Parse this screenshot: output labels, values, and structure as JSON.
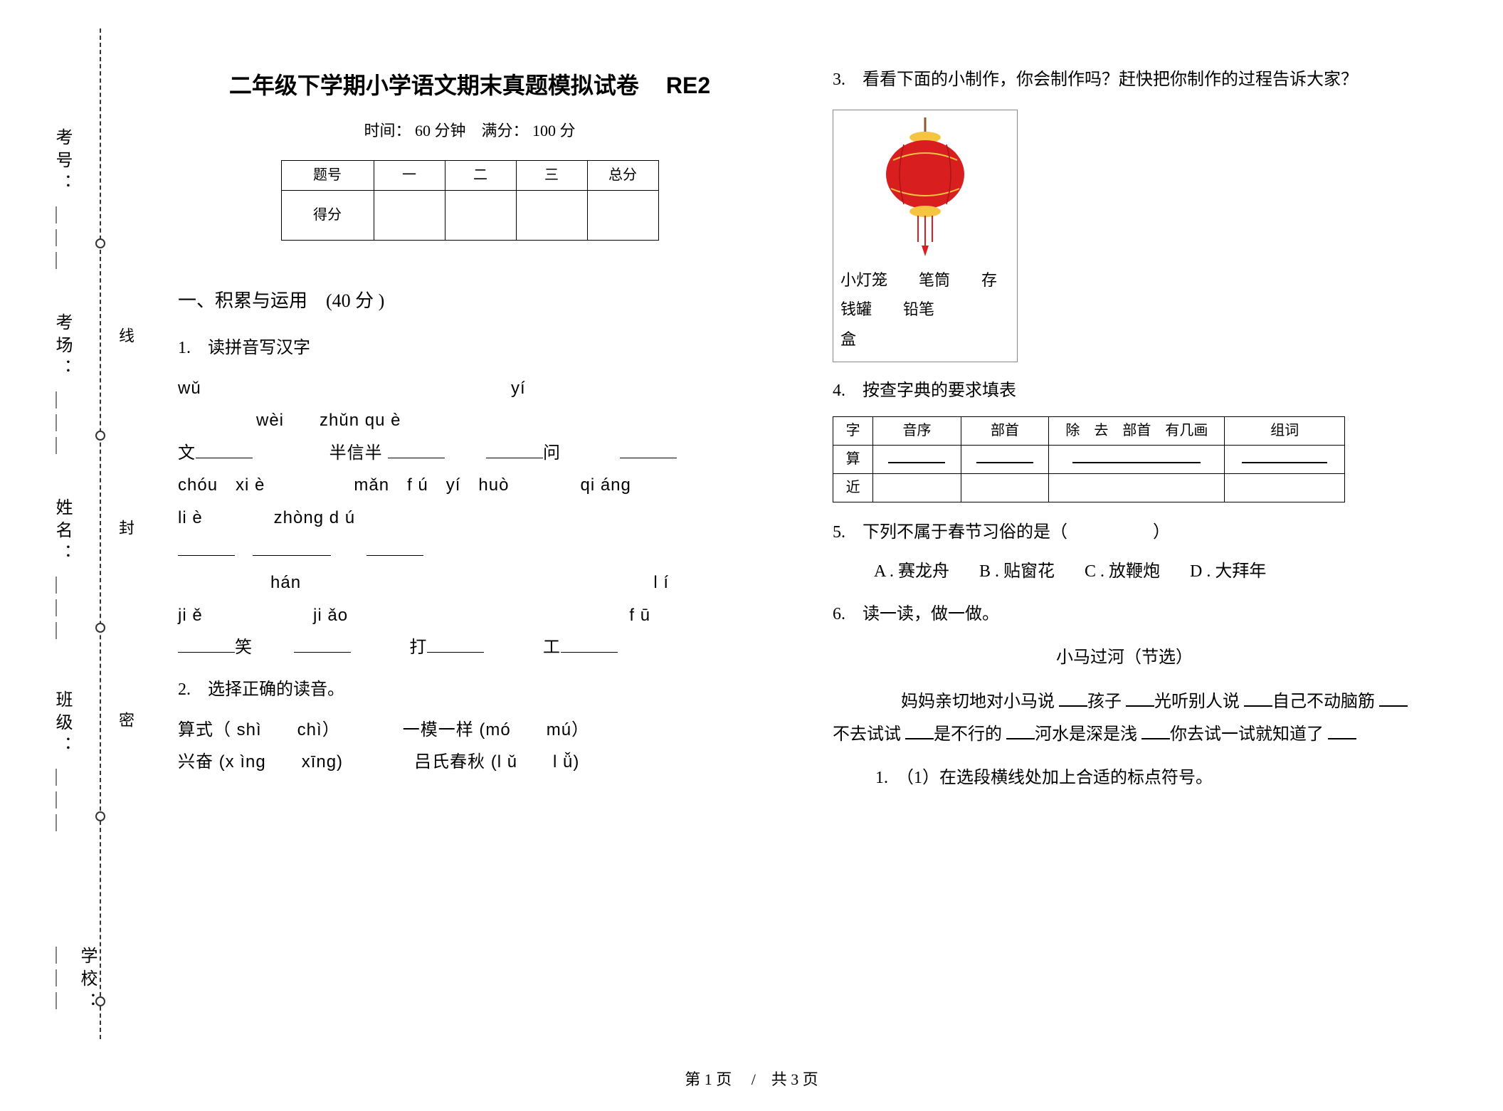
{
  "binding": {
    "labels": [
      "考号：",
      "考场：",
      "姓名：",
      "班级：",
      "学校："
    ],
    "inner": [
      "线",
      "封",
      "密"
    ],
    "dot_tops": [
      295,
      565,
      835,
      1100,
      1360
    ]
  },
  "header": {
    "title": "二年级下学期小学语文期末真题模拟试卷",
    "code": "RE2",
    "subtitle": "时间： 60 分钟　满分： 100 分"
  },
  "score_table": {
    "headers": [
      "题号",
      "一",
      "二",
      "三",
      "总分"
    ],
    "row_label": "得分"
  },
  "section1": {
    "heading": "一、积累与运用　(40 分 )",
    "q1": {
      "num": "1.　读拼音写汉字",
      "line1a": "wǔ",
      "line1b": "yí",
      "line2": "wèi　　zhǔn qu è",
      "line3_pre": "文",
      "line3_mid": "半信半",
      "line3_end": "问",
      "line4": "chóu　xi è　　　　　mǎn　f ú　yí　huò　　　　qi áng",
      "line5": "li è　　　　zhòng d ú",
      "line6a": "hán",
      "line6b": "l í",
      "line7a": "ji ě",
      "line7b": "ji ǎo",
      "line7c": "f ū",
      "line8_a": "笑",
      "line8_b": "打",
      "line8_c": "工"
    },
    "q2": {
      "num": "2.　选择正确的读音。",
      "line1": "算式（ shì　　chì）　　　　一模一样  (mó　　mú）",
      "line2": "兴奋 (x ìng　　xīng)　　　　吕氏春秋  (l ǔ　　l ǚ)"
    }
  },
  "right": {
    "q3": {
      "num": "3.　看看下面的小制作，你会制作吗？赶快把你制作的过程告诉大家？",
      "caption1": "小灯笼　　笔筒　　存钱罐　　铅笔",
      "caption2": "盒",
      "lantern_color": "#d81e1e",
      "lantern_accent": "#f5c542"
    },
    "q4": {
      "num": "4.　按查字典的要求填表",
      "headers": [
        "字",
        "音序",
        "部首",
        "除　去　部首　有几画",
        "组词"
      ],
      "rows": [
        "算",
        "近"
      ]
    },
    "q5": {
      "num_pre": "5.　下列不属于春节习俗的是（",
      "num_post": "）",
      "options": [
        "A . 赛龙舟",
        "B . 贴窗花",
        "C . 放鞭炮",
        "D . 大拜年"
      ]
    },
    "q6": {
      "num": "6.　读一读，做一做。",
      "story_title": "小马过河（节选）",
      "para_parts": [
        "　　妈妈亲切地对小马说 ",
        "孩子 ",
        "光听别人说 ",
        "自己不动脑筋 ",
        "不去试试 ",
        "是不行的 ",
        "河水是深是浅 ",
        "你去试一试就知道了 "
      ],
      "sub1": "1.　（1）在选段横线处加上合适的标点符号。"
    }
  },
  "footer": "第 1 页　 /　共 3 页"
}
